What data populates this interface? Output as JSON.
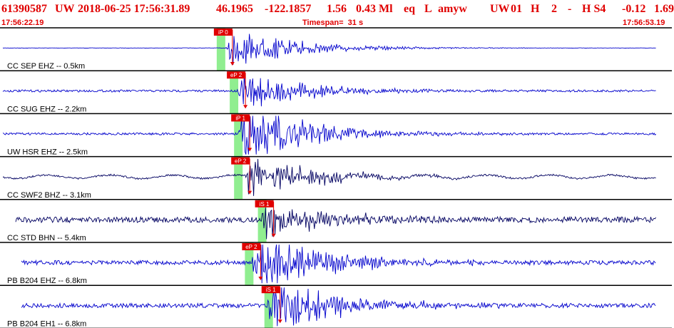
{
  "header": {
    "event_id": "61390587",
    "network": "UW",
    "datetime": "2018-06-25 17:56:31.89",
    "latitude": "46.1965",
    "longitude": "-122.1857",
    "depth": "1.56",
    "magnitude": "0.43 Ml",
    "event_type": "eq",
    "location_flag": "L",
    "analyst": "amyw",
    "network2": "UW",
    "version": "01",
    "h_flag": "H",
    "count": "2",
    "dash": "-",
    "quality": "H S4",
    "residual": "-0.12",
    "rms": "1.69"
  },
  "subheader": {
    "start_time": "17:56:22.19",
    "timespan": "Timespan=  31 s",
    "end_time": "17:56:53.19"
  },
  "colors": {
    "header_text": "#e00000",
    "trace_blue": "#0000cc",
    "trace_dark": "#000060",
    "pick_box": "#e00000",
    "pick_band": "#90ee90",
    "separator": "#000000"
  },
  "chart_data": {
    "type": "line",
    "time_range_s": [
      0,
      31
    ],
    "traces": [
      {
        "label": "CC SEP EHZ -- 0.5km",
        "color": "#0000cc",
        "onset_s": 10.4,
        "amplitude": "medium",
        "noise": "flat",
        "picks": [
          {
            "label": "iP 0",
            "time_s": 10.0
          }
        ]
      },
      {
        "label": "CC SUG EHZ -- 2.2km",
        "color": "#0000cc",
        "onset_s": 10.9,
        "amplitude": "medium",
        "noise": "low",
        "picks": [
          {
            "label": "eP 2",
            "time_s": 10.6
          }
        ]
      },
      {
        "label": "UW HSR EHZ -- 2.5km",
        "color": "#0000cc",
        "onset_s": 11.0,
        "amplitude": "high",
        "noise": "low",
        "picks": [
          {
            "label": "iP 1",
            "time_s": 10.8
          }
        ]
      },
      {
        "label": "CC SWF2 BHZ -- 3.1km",
        "color": "#000060",
        "onset_s": 11.3,
        "amplitude": "medium",
        "noise": "wavy",
        "picks": [
          {
            "label": "eP 2",
            "time_s": 10.8
          }
        ]
      },
      {
        "label": "CC STD BHN -- 5.4km",
        "color": "#000060",
        "onset_s": 12.0,
        "amplitude": "medium",
        "noise": "high",
        "picks": [
          {
            "label": "iS 1",
            "time_s": 11.9
          }
        ]
      },
      {
        "label": "PB B204 EHZ -- 6.8km",
        "color": "#0000cc",
        "onset_s": 11.6,
        "amplitude": "high",
        "noise": "medium",
        "picks": [
          {
            "label": "eP 2",
            "time_s": 11.3
          }
        ]
      },
      {
        "label": "PB B204 EH1 -- 6.8km",
        "color": "#0000cc",
        "onset_s": 12.3,
        "amplitude": "high",
        "noise": "medium",
        "picks": [
          {
            "label": "iS 1",
            "time_s": 12.2
          }
        ]
      }
    ]
  }
}
